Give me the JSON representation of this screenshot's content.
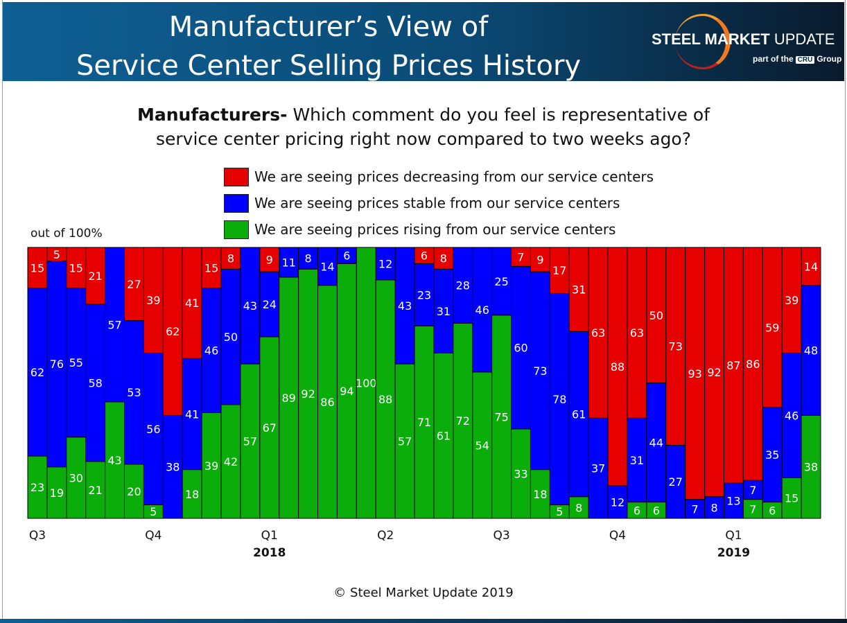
{
  "header": {
    "title_line1": "Manufacturer’s View of",
    "title_line2": "Service Center Selling Prices History",
    "logo_text": "STEEL MARKET UPDATE",
    "logo_sub": "part of the CRU Group"
  },
  "question": {
    "bold": "Manufacturers-",
    "line1": " Which comment do you feel is representative of",
    "line2": "service center pricing right now compared to two weeks ago?"
  },
  "footer": {
    "copyright": "© Steel Market Update 2019"
  },
  "chart_data": {
    "type": "bar",
    "stacked": true,
    "ylabel": "out of 100%",
    "ylim": [
      0,
      100
    ],
    "grid": false,
    "legend_position": "top",
    "colors": {
      "decreasing": "#e60000",
      "stable": "#0000ff",
      "rising": "#0aad0a"
    },
    "x_tick_labels": [
      {
        "bar": 1,
        "label": "Q3"
      },
      {
        "bar": 7,
        "label": "Q4"
      },
      {
        "bar": 13,
        "label": "Q1",
        "year": "2018"
      },
      {
        "bar": 19,
        "label": "Q2"
      },
      {
        "bar": 25,
        "label": "Q3"
      },
      {
        "bar": 31,
        "label": "Q4"
      },
      {
        "bar": 37,
        "label": "Q1",
        "year": "2019"
      }
    ],
    "series": [
      {
        "name": "We are seeing prices rising from our service centers",
        "key": "rising",
        "values": [
          23,
          19,
          30,
          21,
          43,
          20,
          5,
          0,
          18,
          39,
          42,
          57,
          67,
          89,
          92,
          86,
          94,
          100,
          88,
          57,
          71,
          61,
          72,
          54,
          75,
          33,
          18,
          5,
          8,
          0,
          0,
          6,
          6,
          0,
          0,
          0,
          0,
          7,
          6,
          15,
          38
        ]
      },
      {
        "name": "We are seeing prices stable from our service centers",
        "key": "stable",
        "values": [
          62,
          76,
          55,
          58,
          57,
          53,
          56,
          38,
          41,
          46,
          50,
          43,
          24,
          11,
          8,
          14,
          6,
          0,
          12,
          43,
          23,
          31,
          28,
          46,
          25,
          60,
          73,
          78,
          61,
          37,
          12,
          31,
          44,
          27,
          7,
          8,
          13,
          7,
          35,
          46,
          48
        ]
      },
      {
        "name": "We are seeing prices decreasing from our service centers",
        "key": "decreasing",
        "values": [
          15,
          5,
          15,
          21,
          0,
          27,
          39,
          62,
          41,
          15,
          8,
          0,
          9,
          0,
          0,
          0,
          0,
          0,
          0,
          0,
          6,
          8,
          0,
          0,
          0,
          7,
          9,
          17,
          31,
          63,
          88,
          63,
          50,
          73,
          93,
          92,
          87,
          86,
          59,
          39,
          14
        ]
      }
    ]
  }
}
